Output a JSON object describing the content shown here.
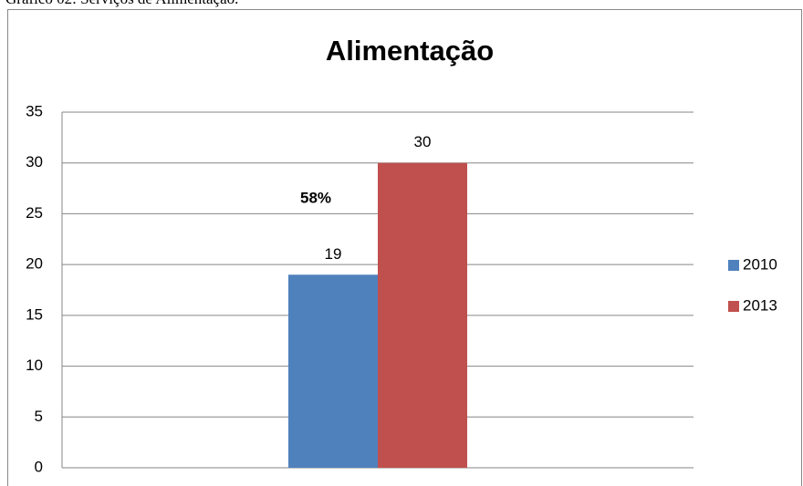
{
  "caption": "Gráfico 02: Serviços de Alimentação.",
  "chart_data": {
    "type": "bar",
    "title": "Alimentação",
    "categories": [
      null
    ],
    "series": [
      {
        "name": "2010",
        "color": "#4f81bd",
        "values": [
          19
        ]
      },
      {
        "name": "2013",
        "color": "#c0504d",
        "values": [
          30
        ]
      }
    ],
    "ylim": [
      0,
      35
    ],
    "yticks": [
      0,
      5,
      10,
      15,
      20,
      25,
      30,
      35
    ],
    "grid": true,
    "annotations": [
      "58%"
    ],
    "legend": "right"
  }
}
